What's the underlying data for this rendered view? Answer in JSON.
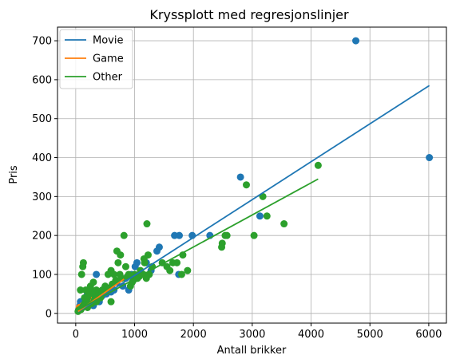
{
  "chart_data": {
    "type": "scatter",
    "title": "Kryssplott med regresjonslinjer",
    "xlabel": "Antall brikker",
    "ylabel": "Pris",
    "xlim": [
      -310,
      6300
    ],
    "ylim": [
      -25,
      735
    ],
    "xticks": [
      0,
      1000,
      2000,
      3000,
      4000,
      5000,
      6000
    ],
    "yticks": [
      0,
      100,
      200,
      300,
      400,
      500,
      600,
      700
    ],
    "grid": true,
    "legend_position": "top-left",
    "series": [
      {
        "name": "Movie",
        "color": "#1f77b4",
        "points": [
          [
            4760,
            700
          ],
          [
            6010,
            400
          ],
          [
            2800,
            350
          ],
          [
            3130,
            250
          ],
          [
            1680,
            200
          ],
          [
            1760,
            200
          ],
          [
            1980,
            200
          ],
          [
            1420,
            170
          ],
          [
            1380,
            160
          ],
          [
            1040,
            130
          ],
          [
            1010,
            120
          ],
          [
            1280,
            110
          ],
          [
            1750,
            100
          ],
          [
            350,
            100
          ],
          [
            700,
            80
          ],
          [
            900,
            60
          ],
          [
            520,
            50
          ],
          [
            220,
            60
          ],
          [
            160,
            30
          ],
          [
            50,
            10
          ],
          [
            70,
            20
          ],
          [
            100,
            15
          ],
          [
            130,
            25
          ],
          [
            180,
            20
          ],
          [
            250,
            30
          ],
          [
            300,
            40
          ],
          [
            400,
            30
          ],
          [
            450,
            45
          ],
          [
            600,
            55
          ],
          [
            800,
            70
          ],
          [
            850,
            90
          ],
          [
            950,
            100
          ],
          [
            1100,
            100
          ],
          [
            1200,
            130
          ],
          [
            2280,
            200
          ],
          [
            300,
            20
          ],
          [
            150,
            40
          ],
          [
            80,
            30
          ],
          [
            200,
            50
          ],
          [
            650,
            60
          ]
        ],
        "regression": [
          [
            40,
            4
          ],
          [
            6010,
            585
          ]
        ]
      },
      {
        "name": "Game",
        "color": "#ff7f0e",
        "points": [
          [
            60,
            15
          ],
          [
            120,
            20
          ],
          [
            200,
            30
          ],
          [
            260,
            35
          ],
          [
            320,
            40
          ]
        ],
        "regression": [
          [
            40,
            5
          ],
          [
            820,
            88
          ]
        ]
      },
      {
        "name": "Other",
        "color": "#2ca02c",
        "points": [
          [
            4120,
            380
          ],
          [
            2900,
            330
          ],
          [
            3180,
            300
          ],
          [
            3250,
            250
          ],
          [
            3540,
            230
          ],
          [
            3030,
            200
          ],
          [
            2540,
            200
          ],
          [
            2570,
            200
          ],
          [
            2490,
            180
          ],
          [
            2480,
            170
          ],
          [
            1210,
            230
          ],
          [
            820,
            200
          ],
          [
            1820,
            150
          ],
          [
            1230,
            150
          ],
          [
            1160,
            140
          ],
          [
            1170,
            130
          ],
          [
            1470,
            130
          ],
          [
            1650,
            130
          ],
          [
            1720,
            130
          ],
          [
            1300,
            120
          ],
          [
            1550,
            120
          ],
          [
            1600,
            110
          ],
          [
            1800,
            100
          ],
          [
            1900,
            110
          ],
          [
            1150,
            100
          ],
          [
            1200,
            90
          ],
          [
            1250,
            100
          ],
          [
            1000,
            100
          ],
          [
            1050,
            90
          ],
          [
            960,
            80
          ],
          [
            900,
            100
          ],
          [
            850,
            120
          ],
          [
            750,
            100
          ],
          [
            700,
            160
          ],
          [
            760,
            150
          ],
          [
            720,
            130
          ],
          [
            650,
            100
          ],
          [
            600,
            110
          ],
          [
            550,
            100
          ],
          [
            500,
            70
          ],
          [
            450,
            60
          ],
          [
            400,
            50
          ],
          [
            350,
            60
          ],
          [
            300,
            50
          ],
          [
            260,
            60
          ],
          [
            220,
            50
          ],
          [
            200,
            40
          ],
          [
            180,
            30
          ],
          [
            150,
            25
          ],
          [
            130,
            20
          ],
          [
            110,
            15
          ],
          [
            90,
            10
          ],
          [
            70,
            10
          ],
          [
            50,
            8
          ],
          [
            40,
            5
          ],
          [
            80,
            60
          ],
          [
            120,
            120
          ],
          [
            130,
            130
          ],
          [
            100,
            100
          ],
          [
            150,
            40
          ],
          [
            170,
            60
          ],
          [
            250,
            70
          ],
          [
            300,
            80
          ],
          [
            350,
            30
          ],
          [
            420,
            40
          ],
          [
            480,
            55
          ],
          [
            540,
            65
          ],
          [
            620,
            75
          ],
          [
            680,
            85
          ],
          [
            780,
            90
          ],
          [
            880,
            95
          ],
          [
            930,
            70
          ],
          [
            980,
            85
          ],
          [
            1080,
            95
          ],
          [
            1100,
            110
          ],
          [
            600,
            30
          ],
          [
            380,
            45
          ],
          [
            320,
            35
          ],
          [
            270,
            25
          ],
          [
            200,
            15
          ]
        ],
        "regression": [
          [
            40,
            9
          ],
          [
            4120,
            345
          ]
        ]
      }
    ]
  }
}
